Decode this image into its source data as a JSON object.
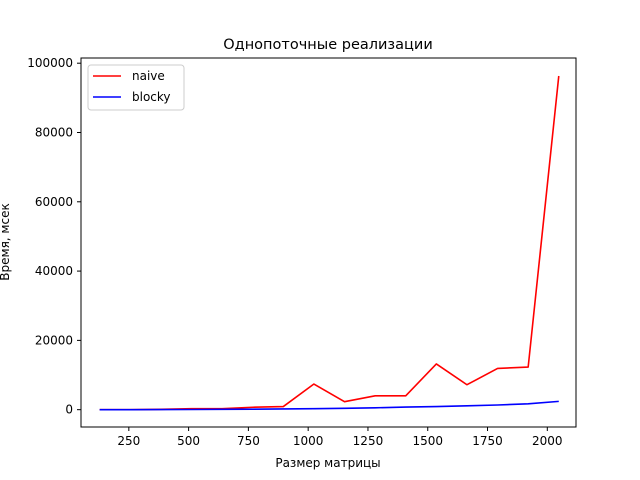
{
  "chart_data": {
    "type": "line",
    "title": "Однопоточные реализации",
    "xlabel": "Размер матрицы",
    "ylabel": "Время, мсек",
    "xlim": [
      50,
      2120
    ],
    "ylim": [
      -5000,
      101500
    ],
    "xticks": [
      250,
      500,
      750,
      1000,
      1250,
      1500,
      1750,
      2000
    ],
    "yticks": [
      0,
      20000,
      40000,
      60000,
      80000,
      100000
    ],
    "grid": false,
    "legend_position": "top-left",
    "x": [
      128,
      256,
      384,
      512,
      640,
      768,
      896,
      1024,
      1152,
      1280,
      1408,
      1536,
      1664,
      1792,
      1920,
      2048
    ],
    "series": [
      {
        "name": "naive",
        "color": "#ff0000",
        "values": [
          0,
          0,
          100,
          300,
          300,
          700,
          900,
          7400,
          2300,
          4000,
          4000,
          13200,
          7200,
          11900,
          12300,
          96300
        ]
      },
      {
        "name": "blocky",
        "color": "#0000ff",
        "values": [
          0,
          0,
          20,
          50,
          100,
          150,
          200,
          300,
          400,
          550,
          750,
          900,
          1100,
          1350,
          1700,
          2400
        ]
      }
    ]
  }
}
